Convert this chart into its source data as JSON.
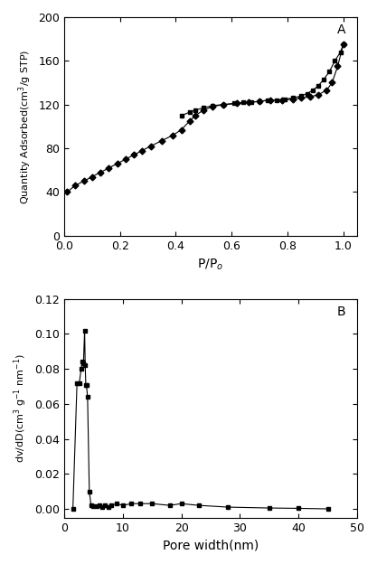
{
  "plot_A": {
    "title": "A",
    "xlabel": "P/P$_o$",
    "ylabel": "Quantity Adsorbed(cm$^3$/g STP)",
    "xlim": [
      0.0,
      1.05
    ],
    "ylim": [
      0,
      200
    ],
    "xticks": [
      0.0,
      0.2,
      0.4,
      0.6,
      0.8,
      1.0
    ],
    "yticks": [
      0,
      40,
      80,
      120,
      160,
      200
    ],
    "adsorption_x": [
      0.01,
      0.04,
      0.07,
      0.1,
      0.13,
      0.16,
      0.19,
      0.22,
      0.25,
      0.28,
      0.31,
      0.35,
      0.39,
      0.42,
      0.45,
      0.47,
      0.5,
      0.53,
      0.57,
      0.62,
      0.66,
      0.7,
      0.74,
      0.78,
      0.82,
      0.85,
      0.88,
      0.91,
      0.94,
      0.96,
      0.98,
      1.0
    ],
    "adsorption_y": [
      40,
      46,
      50,
      54,
      58,
      62,
      66,
      70,
      74,
      78,
      82,
      87,
      92,
      97,
      105,
      110,
      115,
      118,
      120,
      121,
      122,
      123,
      124,
      124,
      125,
      126,
      127,
      129,
      133,
      140,
      155,
      175
    ],
    "desorption_x": [
      1.0,
      0.99,
      0.97,
      0.95,
      0.93,
      0.91,
      0.89,
      0.87,
      0.85,
      0.82,
      0.79,
      0.76,
      0.73,
      0.7,
      0.67,
      0.64,
      0.61,
      0.57,
      0.53,
      0.5,
      0.47,
      0.45,
      0.42
    ],
    "desorption_y": [
      175,
      168,
      160,
      150,
      143,
      137,
      133,
      130,
      128,
      126,
      125,
      124,
      124,
      123,
      122,
      122,
      121,
      120,
      119,
      117,
      115,
      113,
      110
    ]
  },
  "plot_B": {
    "title": "B",
    "xlabel": "Pore width(nm)",
    "ylabel": "dv/dD(cm$^3$ g$^{-1}$ nm$^{-1}$)",
    "xlim": [
      0,
      50
    ],
    "ylim": [
      -0.005,
      0.12
    ],
    "xticks": [
      0,
      10,
      20,
      30,
      40,
      50
    ],
    "yticks": [
      0.0,
      0.02,
      0.04,
      0.06,
      0.08,
      0.1,
      0.12
    ],
    "x": [
      1.5,
      2.2,
      2.6,
      2.9,
      3.1,
      3.3,
      3.5,
      3.6,
      3.7,
      3.8,
      4.0,
      4.3,
      4.6,
      5.0,
      5.5,
      6.0,
      6.5,
      7.0,
      7.5,
      8.0,
      9.0,
      10.0,
      11.5,
      13.0,
      15.0,
      18.0,
      20.0,
      23.0,
      28.0,
      35.0,
      40.0,
      45.0
    ],
    "y": [
      0.0,
      0.072,
      0.072,
      0.08,
      0.084,
      0.083,
      0.102,
      0.082,
      0.071,
      0.071,
      0.064,
      0.01,
      0.002,
      0.0015,
      0.0015,
      0.002,
      0.001,
      0.002,
      0.001,
      0.002,
      0.003,
      0.002,
      0.003,
      0.003,
      0.003,
      0.002,
      0.003,
      0.002,
      0.001,
      0.0005,
      0.0003,
      0.0
    ]
  },
  "line_color": "#000000",
  "marker_square": "s",
  "marker_diamond": "D",
  "marker_size_A": 3.5,
  "marker_size_B": 3.5,
  "bg_color": "#ffffff"
}
